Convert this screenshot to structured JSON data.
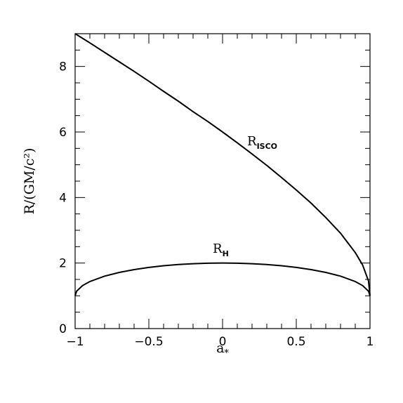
{
  "chart_data": {
    "type": "line",
    "title": "",
    "xlabel": "a",
    "xlabel_subscript": "*",
    "ylabel": "R/(GM/c²)",
    "xlim": [
      -1,
      1
    ],
    "ylim": [
      0,
      9
    ],
    "x_ticks": [
      "−1",
      "−0.5",
      "0",
      "0.5",
      "1"
    ],
    "y_ticks": [
      "0",
      "2",
      "4",
      "6",
      "8"
    ],
    "grid": false,
    "legend": "none",
    "series": [
      {
        "label": "R",
        "label_subscript": "ISCO",
        "x": [
          -1,
          -0.9,
          -0.8,
          -0.7,
          -0.6,
          -0.5,
          -0.4,
          -0.3,
          -0.2,
          -0.1,
          0,
          0.1,
          0.2,
          0.3,
          0.4,
          0.5,
          0.6,
          0.7,
          0.8,
          0.9,
          0.95,
          0.99,
          1
        ],
        "y": [
          9.0,
          8.72,
          8.43,
          8.14,
          7.85,
          7.55,
          7.24,
          6.94,
          6.62,
          6.32,
          6.0,
          5.67,
          5.33,
          4.98,
          4.61,
          4.23,
          3.83,
          3.39,
          2.91,
          2.32,
          1.94,
          1.45,
          1.0
        ]
      },
      {
        "label": "R",
        "label_subscript": "H",
        "x": [
          -1,
          -0.99,
          -0.95,
          -0.9,
          -0.8,
          -0.7,
          -0.6,
          -0.5,
          -0.4,
          -0.3,
          -0.2,
          -0.1,
          0,
          0.1,
          0.2,
          0.3,
          0.4,
          0.5,
          0.6,
          0.7,
          0.8,
          0.9,
          0.95,
          0.99,
          1
        ],
        "y": [
          1.0,
          1.141,
          1.312,
          1.436,
          1.6,
          1.714,
          1.8,
          1.866,
          1.917,
          1.954,
          1.98,
          1.995,
          2.0,
          1.995,
          1.98,
          1.954,
          1.917,
          1.866,
          1.8,
          1.714,
          1.6,
          1.436,
          1.312,
          1.141,
          1.0
        ]
      }
    ]
  }
}
